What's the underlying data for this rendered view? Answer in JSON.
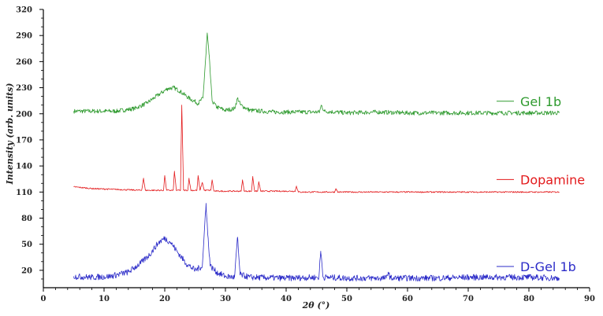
{
  "chart_data": {
    "type": "line",
    "title": "",
    "xlabel": "2θ (°)",
    "ylabel": "Intensity (arb. units)",
    "xlim": [
      0,
      90
    ],
    "ylim": [
      0,
      320
    ],
    "x_ticks": [
      0,
      10,
      20,
      30,
      40,
      50,
      60,
      70,
      80,
      90
    ],
    "y_ticks": [
      20,
      50,
      80,
      110,
      140,
      170,
      200,
      230,
      260,
      290,
      320
    ],
    "grid": false,
    "legend_position": "right, beside each trace",
    "series": [
      {
        "name": "Gel 1b",
        "color": "#2e9a2e",
        "x_range": [
          5,
          85
        ],
        "baseline": 200,
        "points": [
          [
            5,
            203
          ],
          [
            8,
            203
          ],
          [
            12,
            203
          ],
          [
            15,
            206
          ],
          [
            17,
            212
          ],
          [
            19,
            222
          ],
          [
            20.5,
            229
          ],
          [
            21.5,
            230
          ],
          [
            22.5,
            226
          ],
          [
            24,
            218
          ],
          [
            25.5,
            212
          ],
          [
            26.3,
            218
          ],
          [
            26.8,
            270
          ],
          [
            27.0,
            293
          ],
          [
            27.3,
            268
          ],
          [
            27.8,
            215
          ],
          [
            28.5,
            208
          ],
          [
            30,
            204
          ],
          [
            31.5,
            206
          ],
          [
            32.0,
            218
          ],
          [
            32.5,
            210
          ],
          [
            34,
            204
          ],
          [
            38,
            202
          ],
          [
            42,
            202
          ],
          [
            45.5,
            202
          ],
          [
            45.8,
            210
          ],
          [
            46.3,
            203
          ],
          [
            50,
            201
          ],
          [
            55,
            202
          ],
          [
            60,
            201
          ],
          [
            65,
            201
          ],
          [
            70,
            201
          ],
          [
            75,
            201
          ],
          [
            80,
            201
          ],
          [
            85,
            201
          ]
        ]
      },
      {
        "name": "Dopamine",
        "color": "#e31a1c",
        "x_range": [
          5,
          85
        ],
        "baseline": 110,
        "points": [
          [
            5,
            116
          ],
          [
            8,
            114
          ],
          [
            12,
            113
          ],
          [
            16.2,
            112
          ],
          [
            16.5,
            126
          ],
          [
            16.8,
            112
          ],
          [
            19.8,
            112
          ],
          [
            20.0,
            129
          ],
          [
            20.3,
            112
          ],
          [
            21.4,
            112
          ],
          [
            21.6,
            134
          ],
          [
            21.9,
            112
          ],
          [
            22.6,
            112
          ],
          [
            22.8,
            210
          ],
          [
            23.1,
            112
          ],
          [
            23.8,
            112
          ],
          [
            24.0,
            126
          ],
          [
            24.3,
            112
          ],
          [
            25.3,
            112
          ],
          [
            25.5,
            129
          ],
          [
            25.8,
            112
          ],
          [
            26.2,
            121
          ],
          [
            26.5,
            112
          ],
          [
            27.6,
            112
          ],
          [
            27.8,
            124
          ],
          [
            28.1,
            111
          ],
          [
            32.6,
            111
          ],
          [
            32.8,
            124
          ],
          [
            33.1,
            111
          ],
          [
            34.3,
            111
          ],
          [
            34.5,
            128
          ],
          [
            34.8,
            111
          ],
          [
            35.3,
            111
          ],
          [
            35.5,
            122
          ],
          [
            35.8,
            111
          ],
          [
            41.5,
            111
          ],
          [
            41.7,
            117
          ],
          [
            42,
            110
          ],
          [
            48,
            110
          ],
          [
            48.2,
            114
          ],
          [
            48.5,
            110
          ],
          [
            55,
            110
          ],
          [
            60,
            110
          ],
          [
            70,
            110
          ],
          [
            80,
            110
          ],
          [
            85,
            110
          ]
        ]
      },
      {
        "name": "D-Gel 1b",
        "color": "#2b2bc8",
        "x_range": [
          5,
          85
        ],
        "baseline": 10,
        "points": [
          [
            5,
            13
          ],
          [
            8,
            12
          ],
          [
            11,
            13
          ],
          [
            14,
            18
          ],
          [
            16,
            28
          ],
          [
            17.5,
            38
          ],
          [
            19,
            52
          ],
          [
            20,
            57
          ],
          [
            21,
            52
          ],
          [
            22,
            42
          ],
          [
            23.5,
            28
          ],
          [
            25,
            20
          ],
          [
            26.2,
            25
          ],
          [
            26.8,
            97
          ],
          [
            27.1,
            60
          ],
          [
            27.5,
            25
          ],
          [
            28.5,
            18
          ],
          [
            30,
            13
          ],
          [
            31.5,
            12
          ],
          [
            32.0,
            58
          ],
          [
            32.4,
            15
          ],
          [
            34,
            12
          ],
          [
            40,
            11
          ],
          [
            45.4,
            12
          ],
          [
            45.7,
            42
          ],
          [
            46.1,
            12
          ],
          [
            50,
            11
          ],
          [
            56.5,
            11
          ],
          [
            56.8,
            18
          ],
          [
            57.2,
            11
          ],
          [
            60,
            11
          ],
          [
            65,
            11
          ],
          [
            70,
            12
          ],
          [
            75,
            12
          ],
          [
            80,
            12
          ],
          [
            85,
            11
          ]
        ]
      }
    ]
  }
}
